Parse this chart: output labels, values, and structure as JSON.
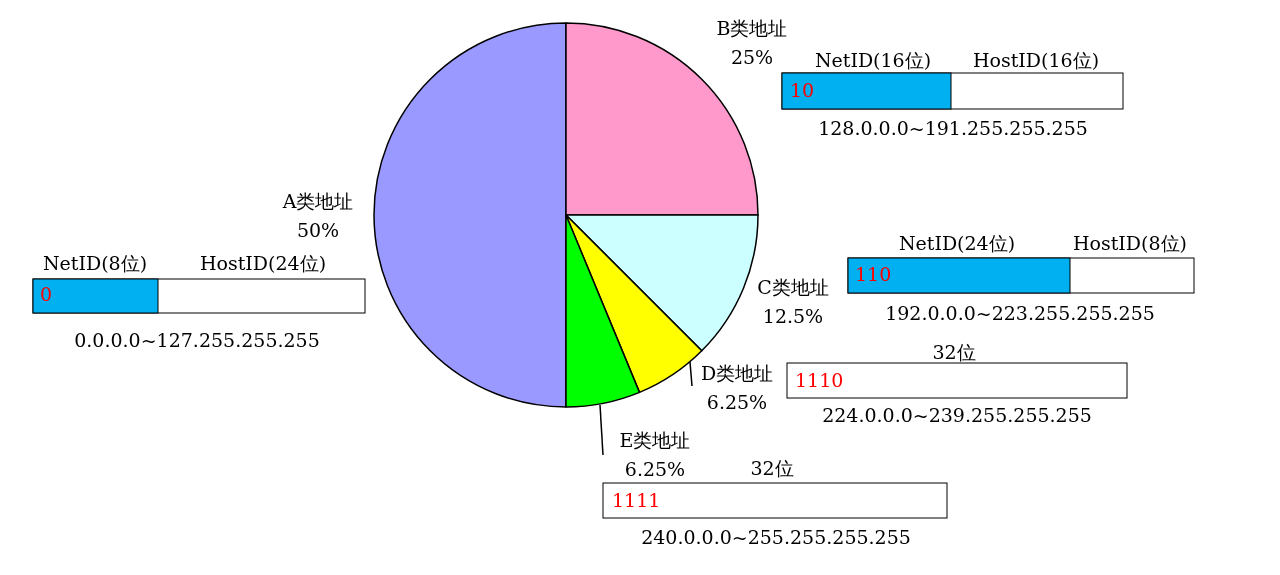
{
  "chart_data": {
    "type": "pie",
    "categories": [
      "A类地址",
      "B类地址",
      "C类地址",
      "D类地址",
      "E类地址"
    ],
    "values": [
      50,
      25,
      12.5,
      6.25,
      6.25
    ],
    "colors": [
      "#9999ff",
      "#ff99cc",
      "#ccffff",
      "#ffff00",
      "#00ff00"
    ],
    "value_labels": [
      "50%",
      "25%",
      "12.5%",
      "6.25%",
      "6.25%"
    ],
    "annotations": [
      "NetID(8位)",
      "HostID(24位)",
      "0",
      "0.0.0.0~127.255.255.255",
      "NetID(16位)",
      "HostID(16位)",
      "10",
      "128.0.0.0~191.255.255.255",
      "NetID(24位)",
      "HostID(8位)",
      "110",
      "192.0.0.0~223.255.255.255",
      "32位",
      "1110",
      "224.0.0.0~239.255.255.255",
      "32位",
      "1111",
      "240.0.0.0~255.255.255.255"
    ]
  }
}
